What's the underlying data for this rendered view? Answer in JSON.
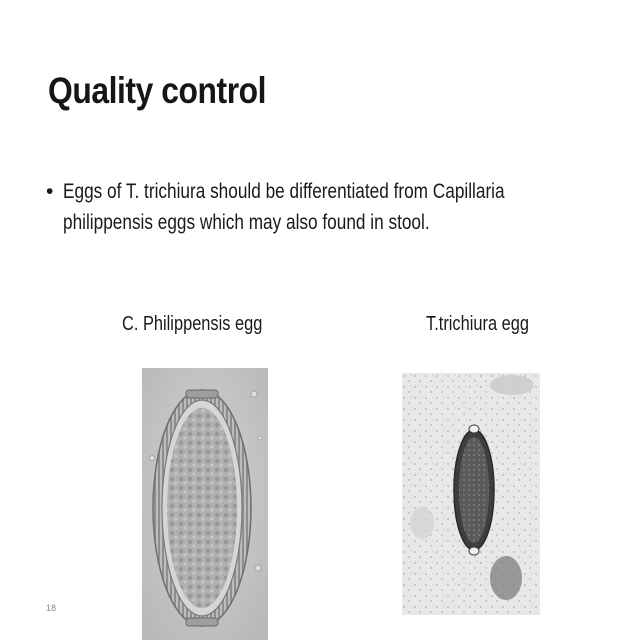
{
  "slide": {
    "title": "Quality control",
    "bullet": {
      "marker": "•",
      "line1": "Eggs of T. trichiura should be differentiated  from Capillaria",
      "line2": "philippensis eggs which may also found in stool."
    },
    "captions": {
      "left": "C. Philippensis  egg",
      "right": "T.trichiura egg"
    },
    "page_number": "18"
  }
}
